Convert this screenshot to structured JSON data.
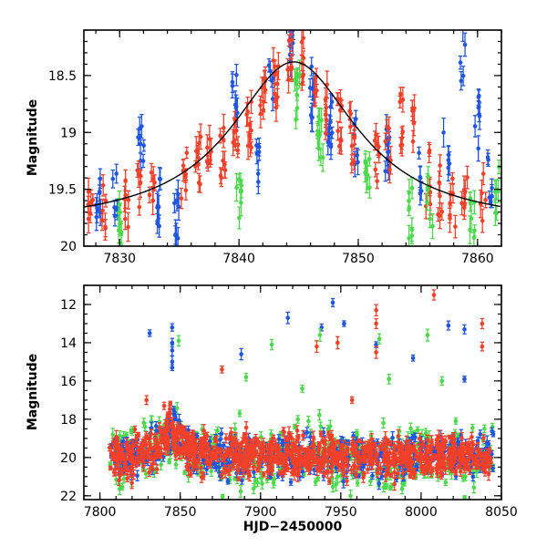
{
  "colors": {
    "blue": "#1f55e0",
    "red": "#f0402a",
    "green": "#4cd94c",
    "model": "#000000"
  },
  "chart_data": [
    {
      "type": "scatter",
      "title": "",
      "xlabel": "",
      "ylabel": "Magnitude",
      "xlim": [
        7827,
        7862
      ],
      "ylim": [
        20,
        18.1
      ],
      "y_inverted": true,
      "grid": false,
      "xticks": [
        7830,
        7840,
        7850,
        7860
      ],
      "yticks": [
        18.5,
        19,
        19.5,
        20
      ],
      "model_curve": {
        "peak_x": 7844.6,
        "peak_mag": 18.38,
        "baseline_mag": 19.83,
        "tE": 6.5
      },
      "series": [
        {
          "color": "blue",
          "clusters": [
            [
              7828.2,
              19.6
            ],
            [
              7829.6,
              19.5
            ],
            [
              7831.8,
              19.15
            ],
            [
              7833.3,
              19.65
            ],
            [
              7834.8,
              19.75
            ],
            [
              7839.7,
              18.68
            ],
            [
              7841.6,
              19.2
            ],
            [
              7842.7,
              18.6
            ],
            [
              7844.4,
              18.2
            ],
            [
              7846.2,
              18.65
            ],
            [
              7847.6,
              18.88
            ],
            [
              7849.8,
              19.1
            ],
            [
              7852.4,
              19.2
            ],
            [
              7855.2,
              19.3
            ],
            [
              7857.4,
              19.2
            ],
            [
              7858.8,
              18.3
            ],
            [
              7860.0,
              18.9
            ],
            [
              7861.1,
              19.4
            ]
          ]
        },
        {
          "color": "red",
          "clusters": [
            [
              7827.6,
              19.75
            ],
            [
              7828.6,
              19.7
            ],
            [
              7830.5,
              19.6
            ],
            [
              7831.6,
              19.55
            ],
            [
              7832.7,
              19.5
            ],
            [
              7835.4,
              19.35
            ],
            [
              7836.6,
              19.25
            ],
            [
              7837.5,
              19.1
            ],
            [
              7838.6,
              19.2
            ],
            [
              7839.7,
              19.0
            ],
            [
              7840.8,
              18.92
            ],
            [
              7842.0,
              18.75
            ],
            [
              7843.1,
              18.55
            ],
            [
              7844.2,
              18.33
            ],
            [
              7845.4,
              18.4
            ],
            [
              7846.5,
              18.6
            ],
            [
              7847.5,
              18.8
            ],
            [
              7848.5,
              18.95
            ],
            [
              7849.5,
              19.05
            ],
            [
              7851.5,
              19.25
            ],
            [
              7852.5,
              19.1
            ],
            [
              7853.6,
              18.9
            ],
            [
              7854.7,
              19.0
            ],
            [
              7855.8,
              19.4
            ],
            [
              7856.8,
              19.5
            ],
            [
              7857.9,
              19.6
            ],
            [
              7858.9,
              19.55
            ],
            [
              7860.5,
              19.6
            ]
          ]
        },
        {
          "color": "green",
          "clusters": [
            [
              7830.0,
              19.85
            ],
            [
              7840.0,
              19.55
            ],
            [
              7844.9,
              18.72
            ],
            [
              7846.8,
              19.0
            ],
            [
              7850.8,
              19.3
            ],
            [
              7854.3,
              19.7
            ],
            [
              7856.0,
              19.6
            ],
            [
              7859.6,
              19.8
            ],
            [
              7861.7,
              19.5
            ]
          ]
        }
      ]
    },
    {
      "type": "scatter",
      "title": "",
      "xlabel": "HJD−2450000",
      "ylabel": "Magnitude",
      "xlim": [
        7790,
        8050
      ],
      "ylim": [
        22.2,
        11
      ],
      "y_inverted": true,
      "grid": false,
      "xticks": [
        7800,
        7850,
        7900,
        7950,
        8000,
        8050
      ],
      "yticks": [
        12,
        14,
        16,
        18,
        20,
        22
      ],
      "band": {
        "x_start": 7806,
        "x_end": 8045,
        "mean_mag": 19.95,
        "peak_x": 7844.6,
        "peak_mag": 18.4
      },
      "outliers": [
        {
          "color": "blue",
          "points": [
            [
              7831,
              13.5
            ],
            [
              7845,
              13.2
            ],
            [
              7845,
              14.0
            ],
            [
              7845,
              14.4
            ],
            [
              7845,
              15.0
            ],
            [
              7845,
              15.3
            ],
            [
              7888,
              14.6
            ],
            [
              7917,
              12.7
            ],
            [
              7938,
              13.2
            ],
            [
              7945,
              11.9
            ],
            [
              7952,
              13.0
            ],
            [
              7972,
              14.1
            ],
            [
              7995,
              14.8
            ],
            [
              8017,
              13.1
            ],
            [
              8027,
              13.3
            ],
            [
              8027,
              15.9
            ]
          ]
        },
        {
          "color": "red",
          "points": [
            [
              7829,
              17.0
            ],
            [
              7840,
              17.3
            ],
            [
              7876,
              15.4
            ],
            [
              7935,
              14.2
            ],
            [
              7948,
              14.0
            ],
            [
              7957,
              17.0
            ],
            [
              7972,
              12.3
            ],
            [
              7972,
              13.0
            ],
            [
              7972,
              14.5
            ],
            [
              8008,
              11.5
            ],
            [
              8038,
              13.0
            ],
            [
              8038,
              14.2
            ]
          ]
        },
        {
          "color": "green",
          "points": [
            [
              7849,
              13.9
            ],
            [
              7891,
              15.8
            ],
            [
              7907,
              14.1
            ],
            [
              7926,
              16.4
            ],
            [
              7937,
              13.6
            ],
            [
              7974,
              13.8
            ],
            [
              7980,
              15.9
            ],
            [
              8004,
              13.6
            ],
            [
              8013,
              16.0
            ]
          ]
        }
      ]
    }
  ]
}
